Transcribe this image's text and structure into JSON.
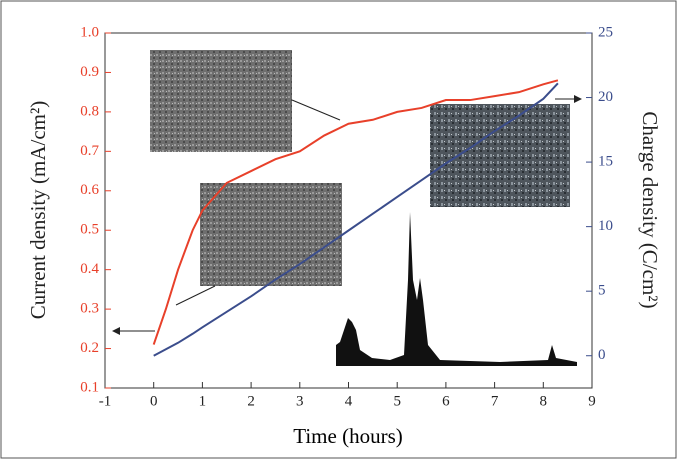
{
  "chart_data": {
    "type": "line",
    "xlabel": "Time (hours)",
    "ylabel": "Current density (mA/cm²)",
    "y2label": "Charge density (C/cm²)",
    "x": [
      0,
      0.25,
      0.5,
      0.8,
      1,
      1.5,
      2,
      2.5,
      3,
      3.5,
      4,
      4.5,
      5,
      5.5,
      6,
      6.5,
      7,
      7.5,
      8,
      8.3
    ],
    "series": [
      {
        "color": "#e8402a",
        "values": [
          0.21,
          0.3,
          0.4,
          0.5,
          0.55,
          0.62,
          0.65,
          0.68,
          0.7,
          0.74,
          0.77,
          0.78,
          0.8,
          0.81,
          0.83,
          0.83,
          0.84,
          0.85,
          0.87,
          0.88
        ]
      },
      {
        "color": "#3b4d8c",
        "axis": "y2",
        "values": [
          0,
          0.5,
          1,
          1.7,
          2.2,
          3.4,
          4.6,
          5.9,
          7.1,
          8.4,
          9.7,
          11,
          12.3,
          13.6,
          14.9,
          16.1,
          17.4,
          18.6,
          19.9,
          21.1
        ]
      }
    ],
    "xlim": [
      -1,
      9
    ],
    "xticks": [
      -1,
      0,
      1,
      2,
      3,
      4,
      5,
      6,
      7,
      8,
      9
    ],
    "ylim": [
      0.1,
      1
    ],
    "yticks": [
      0.1,
      0.2,
      0.3,
      0.4,
      0.5,
      0.6,
      0.7,
      0.8,
      0.9,
      {
        "value": 1,
        "label": "1.0"
      }
    ],
    "y2lim": [
      -2.5,
      25
    ],
    "y2ticks": [
      0,
      5,
      10,
      15,
      20,
      25
    ]
  }
}
